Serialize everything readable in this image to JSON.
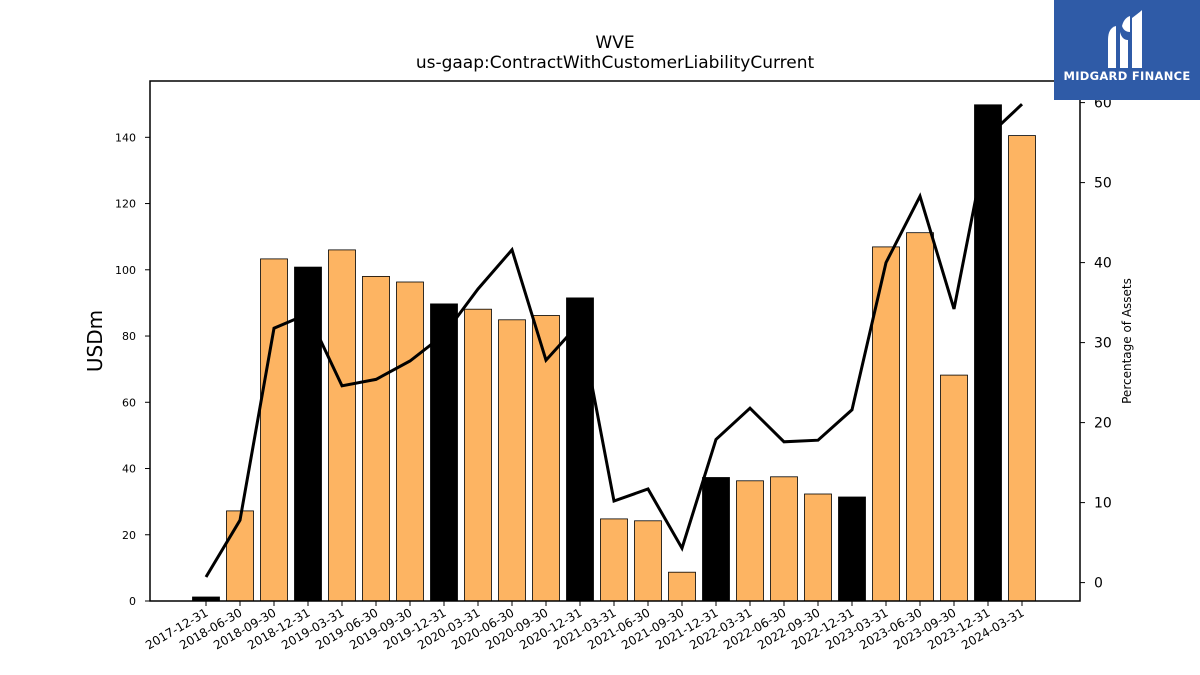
{
  "chart_data": {
    "type": "bar",
    "title": "WVE",
    "subtitle": "us-gaap:ContractWithCustomerLiabilityCurrent",
    "ylabel": "USDm",
    "y2label": "Percentage of Assets",
    "xlabel": "",
    "ylim": [
      0,
      157
    ],
    "y2lim": [
      -2.3,
      62.7
    ],
    "yticks": [
      0,
      20,
      40,
      60,
      80,
      100,
      120,
      140
    ],
    "y2ticks": [
      0,
      10,
      20,
      30,
      40,
      50,
      60
    ],
    "categories": [
      "2017-12-31",
      "2018-06-30",
      "2018-09-30",
      "2018-12-31",
      "2019-03-31",
      "2019-06-30",
      "2019-09-30",
      "2019-12-31",
      "2020-03-31",
      "2020-06-30",
      "2020-09-30",
      "2020-12-31",
      "2021-03-31",
      "2021-06-30",
      "2021-09-30",
      "2021-12-31",
      "2022-03-31",
      "2022-06-30",
      "2022-09-30",
      "2022-12-31",
      "2023-03-31",
      "2023-06-30",
      "2023-09-30",
      "2023-12-31",
      "2024-03-31"
    ],
    "series": [
      {
        "kind": "bar",
        "values": [
          1.2,
          27.2,
          103.3,
          100.8,
          106.0,
          98.0,
          96.3,
          89.7,
          88.1,
          84.9,
          86.2,
          91.5,
          24.8,
          24.2,
          8.7,
          37.3,
          36.3,
          37.5,
          32.3,
          31.4,
          106.9,
          111.2,
          68.2,
          149.8,
          140.5
        ],
        "highlight": [
          true,
          false,
          false,
          true,
          false,
          false,
          false,
          true,
          false,
          false,
          false,
          true,
          false,
          false,
          false,
          true,
          false,
          false,
          false,
          true,
          false,
          false,
          false,
          true,
          false
        ]
      },
      {
        "kind": "line",
        "axis": "right",
        "values": [
          0.7,
          7.8,
          31.8,
          33.6,
          24.6,
          25.4,
          27.7,
          31.0,
          36.7,
          41.6,
          27.8,
          32.5,
          10.2,
          11.7,
          4.3,
          17.9,
          21.8,
          17.6,
          17.8,
          21.6,
          40.0,
          48.3,
          34.2,
          55.8,
          59.8
        ]
      }
    ],
    "colors": {
      "bar": "#fdb462",
      "bar_highlight": "#000000",
      "line": "#000000"
    },
    "grid": false,
    "legend": "none"
  },
  "logo": {
    "text": "MIDGARD FINANCE",
    "color": "#2f5ba7"
  }
}
